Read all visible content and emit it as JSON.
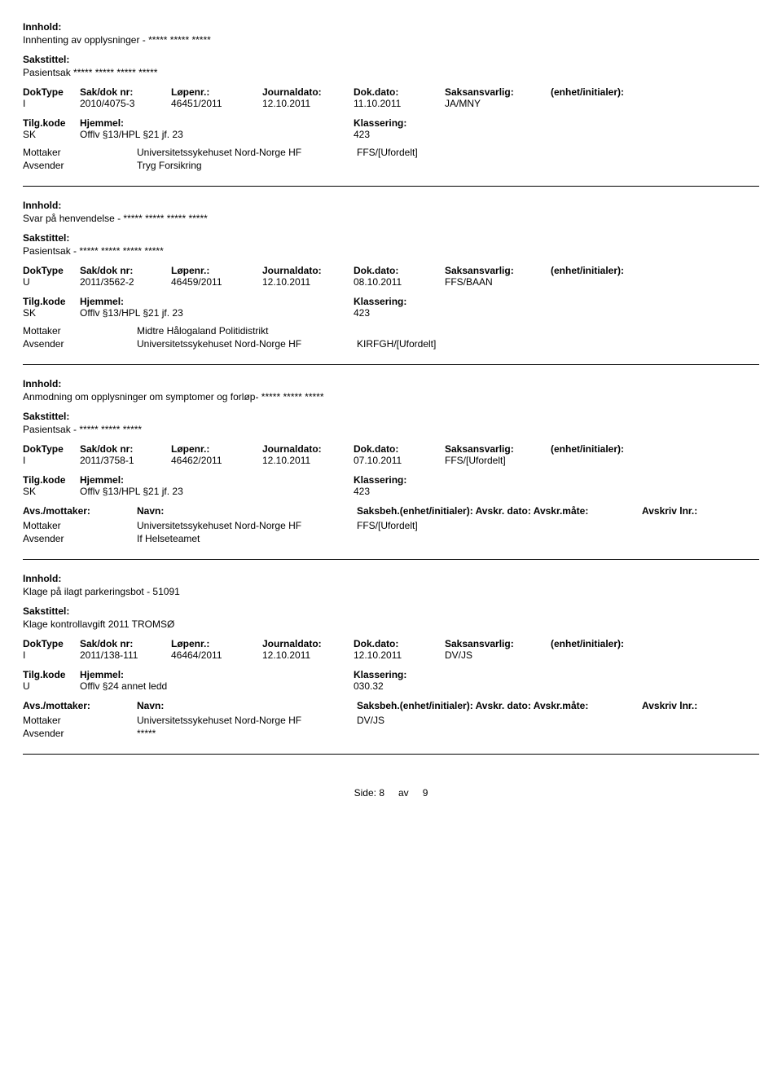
{
  "labels": {
    "innhold": "Innhold:",
    "sakstittel": "Sakstittel:",
    "doktype": "DokType",
    "sakdok": "Sak/dok nr:",
    "lopenr": "Løpenr.:",
    "journaldato": "Journaldato:",
    "dokdato": "Dok.dato:",
    "saksansvarlig": "Saksansvarlig:",
    "enhet": "(enhet/initialer):",
    "tilgkode": "Tilg.kode",
    "hjemmel": "Hjemmel:",
    "klassering": "Klassering:",
    "avsmottaker": "Avs./mottaker:",
    "navn": "Navn:",
    "saksbeh": "Saksbeh.(enhet/initialer): Avskr. dato: Avskr.måte:",
    "avskrlnr": "Avskriv lnr.:",
    "mottaker": "Mottaker",
    "avsender": "Avsender",
    "side": "Side:",
    "av": "av"
  },
  "footer": {
    "page": "8",
    "total": "9"
  },
  "records": [
    {
      "innhold": "Innhenting av opplysninger - ***** ***** *****",
      "sakstittel": "Pasientsak ***** ***** ***** *****",
      "doktype": "I",
      "sakdok": "2010/4075-3",
      "lopenr": "46451/2011",
      "journaldato": "12.10.2011",
      "dokdato": "11.10.2011",
      "saksansvarlig": "JA/MNY",
      "enhet": "",
      "tilgkode": "SK",
      "hjemmel": "Offlv §13/HPL §21 jf. 23",
      "klassering": "423",
      "show_party_header": false,
      "parties": [
        {
          "role": "Mottaker",
          "name": "Universitetssykehuset Nord-Norge HF",
          "extra": "FFS/[Ufordelt]"
        },
        {
          "role": "Avsender",
          "name": "Tryg Forsikring",
          "extra": ""
        }
      ]
    },
    {
      "innhold": "Svar på henvendelse - ***** ***** ***** *****",
      "sakstittel": "Pasientsak - ***** ***** ***** *****",
      "doktype": "U",
      "sakdok": "2011/3562-2",
      "lopenr": "46459/2011",
      "journaldato": "12.10.2011",
      "dokdato": "08.10.2011",
      "saksansvarlig": "FFS/BAAN",
      "enhet": "",
      "tilgkode": "SK",
      "hjemmel": "Offlv §13/HPL §21 jf. 23",
      "klassering": "423",
      "show_party_header": false,
      "parties": [
        {
          "role": "Mottaker",
          "name": "Midtre Hålogaland Politidistrikt",
          "extra": ""
        },
        {
          "role": "Avsender",
          "name": "Universitetssykehuset Nord-Norge HF",
          "extra": "KIRFGH/[Ufordelt]"
        }
      ]
    },
    {
      "innhold": "Anmodning om opplysninger om symptomer og forløp- ***** ***** *****",
      "sakstittel": "Pasientsak - ***** ***** *****",
      "doktype": "I",
      "sakdok": "2011/3758-1",
      "lopenr": "46462/2011",
      "journaldato": "12.10.2011",
      "dokdato": "07.10.2011",
      "saksansvarlig": "FFS/[Ufordelt]",
      "enhet": "",
      "tilgkode": "SK",
      "hjemmel": "Offlv §13/HPL §21 jf. 23",
      "klassering": "423",
      "show_party_header": true,
      "parties": [
        {
          "role": "Mottaker",
          "name": "Universitetssykehuset Nord-Norge HF",
          "extra": "FFS/[Ufordelt]"
        },
        {
          "role": "Avsender",
          "name": "If Helseteamet",
          "extra": ""
        }
      ]
    },
    {
      "innhold": "Klage på ilagt parkeringsbot - 51091",
      "sakstittel": "Klage kontrollavgift 2011 TROMSØ",
      "doktype": "I",
      "sakdok": "2011/138-111",
      "lopenr": "46464/2011",
      "journaldato": "12.10.2011",
      "dokdato": "12.10.2011",
      "saksansvarlig": "DV/JS",
      "enhet": "",
      "tilgkode": "U",
      "hjemmel": "Offlv §24 annet ledd",
      "klassering": "030.32",
      "show_party_header": true,
      "parties": [
        {
          "role": "Mottaker",
          "name": "Universitetssykehuset Nord-Norge HF",
          "extra": "DV/JS"
        },
        {
          "role": "Avsender",
          "name": "*****",
          "extra": ""
        }
      ]
    }
  ]
}
